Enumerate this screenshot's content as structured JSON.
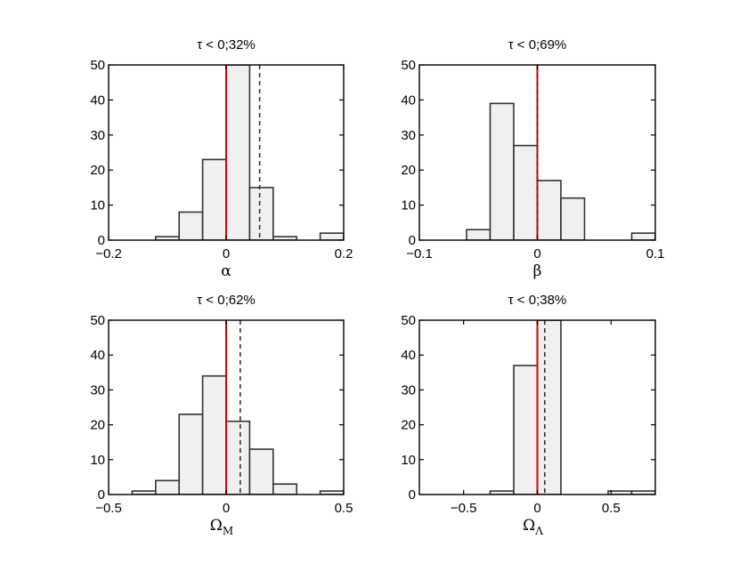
{
  "chart_data": [
    {
      "type": "bar",
      "title": "τ < 0;32%",
      "xlabel": "α",
      "xlabel_sub": "",
      "xlim": [
        -0.2,
        0.2
      ],
      "ylim": [
        0,
        50
      ],
      "xticks": [
        -0.2,
        0,
        0.2
      ],
      "xtick_labels": [
        "−0.2",
        "0",
        "0.2"
      ],
      "yticks": [
        0,
        10,
        20,
        30,
        40,
        50
      ],
      "ytick_labels": [
        "0",
        "10",
        "20",
        "30",
        "40",
        "50"
      ],
      "bin_edges": [
        -0.2,
        -0.16,
        -0.12,
        -0.08,
        -0.04,
        0.0,
        0.04,
        0.08,
        0.12,
        0.16,
        0.2
      ],
      "values": [
        0,
        0,
        1,
        8,
        23,
        50,
        15,
        1,
        0,
        2
      ],
      "red_line_x": 0,
      "dashed_line_x": 0.057,
      "bar_color": "#f0f0f0",
      "red_color": "#dd0000"
    },
    {
      "type": "bar",
      "title": "τ < 0;69%",
      "xlabel": "β",
      "xlabel_sub": "",
      "xlim": [
        -0.1,
        0.1
      ],
      "ylim": [
        0,
        50
      ],
      "xticks": [
        -0.1,
        0,
        0.1
      ],
      "xtick_labels": [
        "−0.1",
        "0",
        "0.1"
      ],
      "yticks": [
        0,
        10,
        20,
        30,
        40,
        50
      ],
      "ytick_labels": [
        "0",
        "10",
        "20",
        "30",
        "40",
        "50"
      ],
      "bin_edges": [
        -0.1,
        -0.08,
        -0.06,
        -0.04,
        -0.02,
        0.0,
        0.02,
        0.04,
        0.06,
        0.08,
        0.1
      ],
      "values": [
        0,
        0,
        3,
        39,
        27,
        17,
        12,
        0,
        0,
        2
      ],
      "red_line_x": 0,
      "dashed_line_x": 0,
      "bar_color": "#f0f0f0",
      "red_color": "#dd0000"
    },
    {
      "type": "bar",
      "title": "τ < 0;62%",
      "xlabel": "Ω",
      "xlabel_sub": "M",
      "xlim": [
        -0.5,
        0.5
      ],
      "ylim": [
        0,
        50
      ],
      "xticks": [
        -0.5,
        0,
        0.5
      ],
      "xtick_labels": [
        "−0.5",
        "0",
        "0.5"
      ],
      "yticks": [
        0,
        10,
        20,
        30,
        40,
        50
      ],
      "ytick_labels": [
        "0",
        "10",
        "20",
        "30",
        "40",
        "50"
      ],
      "bin_edges": [
        -0.5,
        -0.4,
        -0.3,
        -0.2,
        -0.1,
        0.0,
        0.1,
        0.2,
        0.3,
        0.4,
        0.5
      ],
      "values": [
        0,
        1,
        4,
        23,
        34,
        21,
        13,
        3,
        0,
        1
      ],
      "red_line_x": 0,
      "dashed_line_x": 0.06,
      "bar_color": "#f0f0f0",
      "red_color": "#dd0000"
    },
    {
      "type": "bar",
      "title": "τ < 0;38%",
      "xlabel": "Ω",
      "xlabel_sub": "Λ",
      "xlim": [
        -0.8,
        0.8
      ],
      "ylim": [
        0,
        50
      ],
      "xticks": [
        -0.5,
        0,
        0.5
      ],
      "xtick_labels": [
        "−0.5",
        "0",
        "0.5"
      ],
      "yticks": [
        0,
        10,
        20,
        30,
        40,
        50
      ],
      "ytick_labels": [
        "0",
        "10",
        "20",
        "30",
        "40",
        "50"
      ],
      "bin_edges": [
        -0.8,
        -0.64,
        -0.48,
        -0.32,
        -0.16,
        0.0,
        0.16,
        0.32,
        0.48,
        0.64,
        0.8
      ],
      "values": [
        0,
        0,
        0,
        1,
        37,
        50,
        0,
        0,
        1,
        1
      ],
      "red_line_x": 0,
      "dashed_line_x": 0.05,
      "bar_color": "#f0f0f0",
      "red_color": "#dd0000"
    }
  ]
}
